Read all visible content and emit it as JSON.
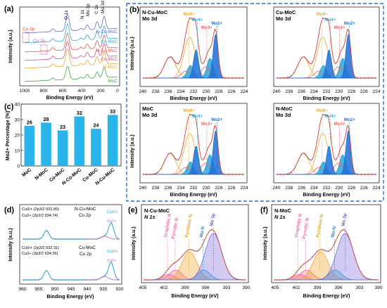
{
  "panels": {
    "a": {
      "label": "(a)",
      "xlabel": "Binding Energy (eV)",
      "ylabel": "Intensity (a.u.)",
      "ticks": [
        "1000",
        "800",
        "600",
        "400",
        "200",
        "0"
      ],
      "peak_labels": [
        "O 1s",
        "N 1s",
        "Mo 3p",
        "C 1s",
        "Mo 3d"
      ],
      "cu_labels": [
        "Cu 2p",
        "Cu 2p"
      ],
      "series": [
        {
          "name": "N-Cu-MoC",
          "color": "#5b6bd6"
        },
        {
          "name": "Cu-MoC",
          "color": "#29a7d9"
        },
        {
          "name": "N-Co-MoC",
          "color": "#e25a45"
        },
        {
          "name": "Co-MoC",
          "color": "#d8508a"
        },
        {
          "name": "N-MoC",
          "color": "#f2a22a"
        },
        {
          "name": "MoC",
          "color": "#3aa84a"
        }
      ]
    },
    "b": {
      "label": "(b)",
      "xlabel": "Binding Energy (eV)",
      "ylabel": "Intensity (a.u.)",
      "ticks": [
        "240",
        "238",
        "236",
        "234",
        "232",
        "230",
        "228",
        "226",
        "224"
      ],
      "species": [
        "Mo6+",
        "Mo4+",
        "Mo3+",
        "Mo2+"
      ],
      "sub": [
        {
          "title": "N-Cu-MoC",
          "subtitle": "Mo 3d"
        },
        {
          "title": "Cu-MoC",
          "subtitle": "Mo 3d"
        },
        {
          "title": "MoC",
          "subtitle": "Mo 3d"
        },
        {
          "title": "N-MoC",
          "subtitle": "Mo 3d"
        }
      ]
    },
    "c": {
      "label": "(c)",
      "ylabel": "Mo2+ Percentage (%)",
      "yticks": [
        "0",
        "10",
        "20",
        "30",
        "40"
      ]
    },
    "d": {
      "label": "(d)",
      "xlabel": "Binding Energy (eV)",
      "ylabel": "Intensity (a.u.)",
      "ticks": [
        "960",
        "955",
        "950",
        "945",
        "940",
        "935",
        "930"
      ],
      "top": {
        "sample": "N-Cu-MoC",
        "orbital": "Cu 2p",
        "l1": "Cu0/+ (2p3/2 932.89)",
        "l2": "Cu2+  (2p3/2 934.74)",
        "peak1": "Cu0/+",
        "peak2": "Cu2+"
      },
      "bottom": {
        "sample": "Cu-MoC",
        "orbital": "Cu 2p",
        "l1": "Cu0/+ (2p3/2 932.31)",
        "l2": "Cu2+  (2p3/2 934.36)",
        "peak1": "Cu0/+",
        "peak2": "Cu2+"
      }
    },
    "e": {
      "label": "(e)",
      "title": "N-Cu-MoC",
      "subtitle": "N 1s",
      "xlabel": "Binding Energy (eV)",
      "ylabel": "Intensity (a.u.)",
      "ticks": [
        "405",
        "402",
        "399",
        "396",
        "393",
        "390"
      ],
      "components": [
        "Graphitic N",
        "Pyrrolic N",
        "Pyridinic N",
        "Mo-N",
        "Mo 3p"
      ]
    },
    "f": {
      "label": "(f)",
      "title": "N-MoC",
      "subtitle": "N 1s",
      "xlabel": "Binding Energy (eV)",
      "ylabel": "Intensity (a.u.)",
      "ticks": [
        "405",
        "402",
        "399",
        "396",
        "393",
        "390"
      ],
      "components": [
        "Graphitic N",
        "Pyrrolic N",
        "Pyridinic N",
        "Mo-N",
        "Mo 3p"
      ]
    }
  },
  "chart_data": [
    {
      "type": "bar",
      "categories": [
        "MoC",
        "N-MoC",
        "Co-MoC",
        "N-Co-MoC",
        "Cu-MoC",
        "N-Cu-MoC"
      ],
      "values": [
        26,
        28,
        23,
        32,
        24,
        33
      ],
      "xlabel": "",
      "ylabel": "Mo2+ Percentage (%)",
      "ylim": [
        0,
        40
      ],
      "color": "#2ab4ec"
    }
  ],
  "colors": {
    "mo6": "#f5a72a",
    "mo4": "#2aa5dd",
    "mo3": "#ef5b5b",
    "mo2": "#1f6fd6",
    "border": "#2f6fb5",
    "envelope": "#e2463b",
    "raw": "#444444"
  }
}
